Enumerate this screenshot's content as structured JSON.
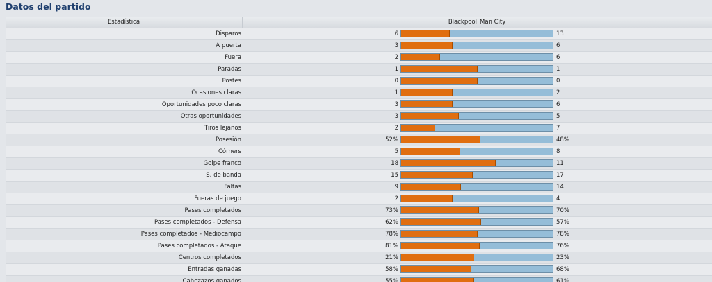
{
  "title": "Datos del partido",
  "header": {
    "stat": "Estadística",
    "home_team": "Blackpool",
    "away_team": "Man City"
  },
  "colors": {
    "home": "#e06e10",
    "away": "#95bdd8"
  },
  "stats": [
    {
      "label": "Disparos",
      "home": "6",
      "away": "13",
      "home_share": 0.316
    },
    {
      "label": "A puerta",
      "home": "3",
      "away": "6",
      "home_share": 0.333
    },
    {
      "label": "Fuera",
      "home": "2",
      "away": "6",
      "home_share": 0.25
    },
    {
      "label": "Paradas",
      "home": "1",
      "away": "1",
      "home_share": 0.5
    },
    {
      "label": "Postes",
      "home": "0",
      "away": "0",
      "home_share": 0.5
    },
    {
      "label": "Ocasiones claras",
      "home": "1",
      "away": "2",
      "home_share": 0.333
    },
    {
      "label": "Oportunidades poco claras",
      "home": "3",
      "away": "6",
      "home_share": 0.333
    },
    {
      "label": "Otras oportunidades",
      "home": "3",
      "away": "5",
      "home_share": 0.375
    },
    {
      "label": "Tiros lejanos",
      "home": "2",
      "away": "7",
      "home_share": 0.222
    },
    {
      "label": "Posesión",
      "home": "52%",
      "away": "48%",
      "home_share": 0.52
    },
    {
      "label": "Córners",
      "home": "5",
      "away": "8",
      "home_share": 0.385
    },
    {
      "label": "Golpe franco",
      "home": "18",
      "away": "11",
      "home_share": 0.621
    },
    {
      "label": "S. de banda",
      "home": "15",
      "away": "17",
      "home_share": 0.469
    },
    {
      "label": "Faltas",
      "home": "9",
      "away": "14",
      "home_share": 0.391
    },
    {
      "label": "Fueras de juego",
      "home": "2",
      "away": "4",
      "home_share": 0.333
    },
    {
      "label": "Pases completados",
      "home": "73%",
      "away": "70%",
      "home_share": 0.51
    },
    {
      "label": "Pases completados - Defensa",
      "home": "62%",
      "away": "57%",
      "home_share": 0.521
    },
    {
      "label": "Pases completados - Mediocampo",
      "home": "78%",
      "away": "78%",
      "home_share": 0.5
    },
    {
      "label": "Pases completados - Ataque",
      "home": "81%",
      "away": "76%",
      "home_share": 0.516
    },
    {
      "label": "Centros completados",
      "home": "21%",
      "away": "23%",
      "home_share": 0.477
    },
    {
      "label": "Entradas ganadas",
      "home": "58%",
      "away": "68%",
      "home_share": 0.46
    },
    {
      "label": "Cabezazos ganados",
      "home": "55%",
      "away": "61%",
      "home_share": 0.474
    }
  ]
}
